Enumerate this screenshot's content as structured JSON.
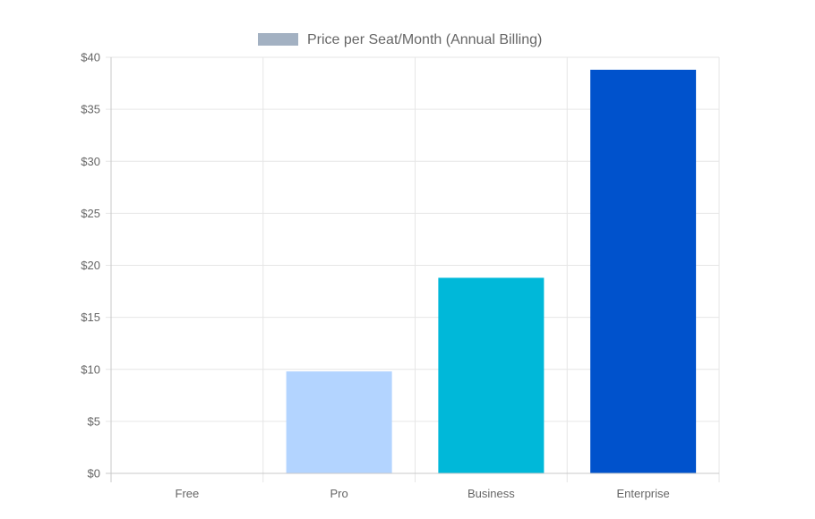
{
  "chart_data": {
    "type": "bar",
    "categories": [
      "Free",
      "Pro",
      "Business",
      "Enterprise"
    ],
    "series": [
      {
        "name": "Price per Seat/Month (Annual Billing)",
        "values": [
          0,
          9.8,
          18.8,
          38.8
        ],
        "bar_colors": [
          "#a3b1c2",
          "#b3d4ff",
          "#00b8d9",
          "#0052cc"
        ]
      }
    ],
    "y_ticks": [
      "$0",
      "$5",
      "$10",
      "$15",
      "$20",
      "$25",
      "$30",
      "$35",
      "$40"
    ],
    "ylim": [
      0,
      40
    ],
    "y_step": 5,
    "grid": true,
    "legend": {
      "position": "top",
      "swatch_color": "#a3b1c2"
    },
    "title": "",
    "xlabel": "",
    "ylabel": ""
  }
}
